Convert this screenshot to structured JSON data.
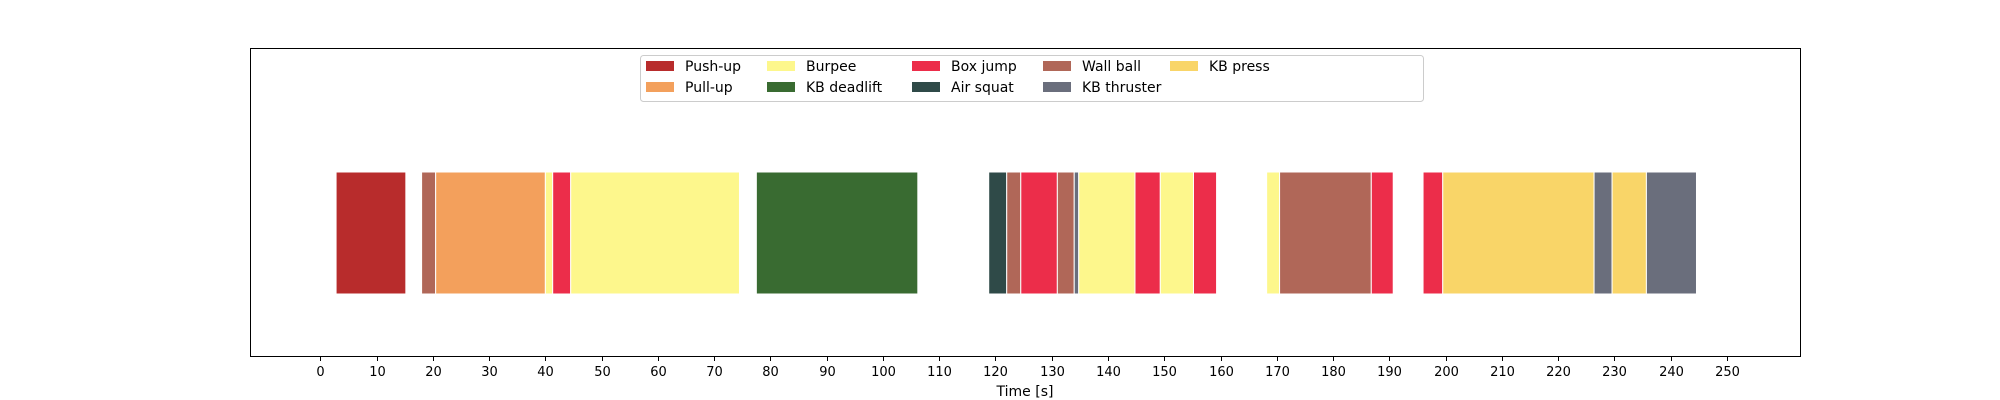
{
  "chart_data": {
    "type": "bar",
    "orientation": "horizontal-timeline",
    "xlabel": "Time [s]",
    "xlim": [
      -12.5,
      263
    ],
    "xticks": [
      0,
      10,
      20,
      30,
      40,
      50,
      60,
      70,
      80,
      90,
      100,
      110,
      120,
      130,
      140,
      150,
      160,
      170,
      180,
      190,
      200,
      210,
      220,
      230,
      240,
      250
    ],
    "grid": false,
    "legend": {
      "placement": "upper center",
      "columns": 6,
      "entries": [
        {
          "name": "Push-up",
          "color": "#b82c2c"
        },
        {
          "name": "Pull-up",
          "color": "#f3a05c"
        },
        {
          "name": "Burpee",
          "color": "#fdf78c"
        },
        {
          "name": "KB deadlift",
          "color": "#396b31"
        },
        {
          "name": "Box jump",
          "color": "#ec2d4a"
        },
        {
          "name": "Air squat",
          "color": "#2f4a48"
        },
        {
          "name": "Wall ball",
          "color": "#b06758"
        },
        {
          "name": "KB thruster",
          "color": "#6a6e7c"
        },
        {
          "name": "KB press",
          "color": "#f9d568"
        }
      ]
    },
    "segments": [
      {
        "exercise": "Push-up",
        "start": 2.8,
        "end": 15.2
      },
      {
        "exercise": "Wall ball",
        "start": 18.0,
        "end": 20.5
      },
      {
        "exercise": "Pull-up",
        "start": 20.5,
        "end": 40.0
      },
      {
        "exercise": "Burpee",
        "start": 40.0,
        "end": 41.3
      },
      {
        "exercise": "Box jump",
        "start": 41.3,
        "end": 44.5
      },
      {
        "exercise": "Burpee",
        "start": 44.5,
        "end": 74.5
      },
      {
        "exercise": "KB deadlift",
        "start": 77.5,
        "end": 106.2
      },
      {
        "exercise": "Air squat",
        "start": 118.8,
        "end": 122.0
      },
      {
        "exercise": "Wall ball",
        "start": 122.0,
        "end": 124.5
      },
      {
        "exercise": "Box jump",
        "start": 124.5,
        "end": 131.0
      },
      {
        "exercise": "Wall ball",
        "start": 131.0,
        "end": 134.0
      },
      {
        "exercise": "KB thruster",
        "start": 134.0,
        "end": 134.8
      },
      {
        "exercise": "Burpee",
        "start": 134.8,
        "end": 144.8
      },
      {
        "exercise": "Box jump",
        "start": 144.8,
        "end": 149.3
      },
      {
        "exercise": "Burpee",
        "start": 149.3,
        "end": 155.2
      },
      {
        "exercise": "Box jump",
        "start": 155.2,
        "end": 159.3
      },
      {
        "exercise": "Burpee",
        "start": 168.2,
        "end": 170.5
      },
      {
        "exercise": "Wall ball",
        "start": 170.5,
        "end": 186.8
      },
      {
        "exercise": "Box jump",
        "start": 186.8,
        "end": 190.7
      },
      {
        "exercise": "Box jump",
        "start": 196.0,
        "end": 199.5
      },
      {
        "exercise": "KB press",
        "start": 199.5,
        "end": 226.4
      },
      {
        "exercise": "KB thruster",
        "start": 226.4,
        "end": 229.6
      },
      {
        "exercise": "KB press",
        "start": 229.6,
        "end": 235.7
      },
      {
        "exercise": "KB thruster",
        "start": 235.7,
        "end": 244.6
      }
    ]
  }
}
